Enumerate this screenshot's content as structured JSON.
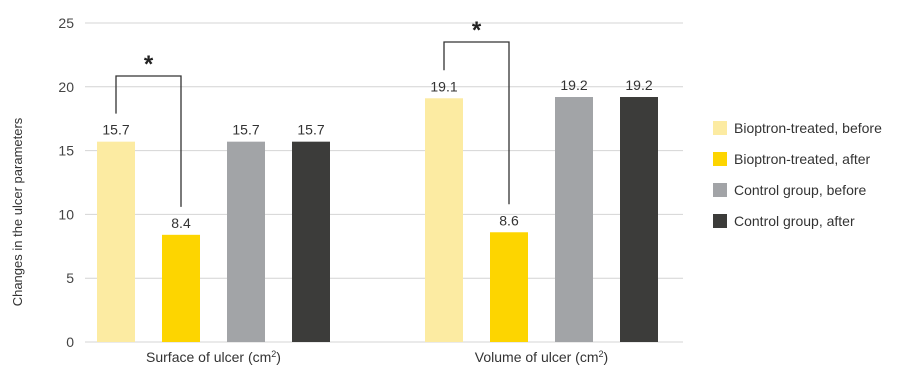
{
  "chart_data": {
    "type": "bar",
    "ylabel": "Changes in the ulcer parameters",
    "ylim": [
      0,
      25
    ],
    "yticks": [
      0,
      5,
      10,
      15,
      20,
      25
    ],
    "grid": true,
    "legend_position": "right",
    "groups": [
      {
        "label": "Surface of ulcer (cm",
        "sup": "2",
        "label_end": ")"
      },
      {
        "label": "Volume of ulcer (cm",
        "sup": "2",
        "label_end": ")"
      }
    ],
    "series": [
      {
        "name": "Bioptron-treated, before",
        "color": "#FCEBA2",
        "values": [
          15.7,
          19.1
        ]
      },
      {
        "name": "Bioptron-treated, after",
        "color": "#FDD500",
        "values": [
          8.4,
          8.6
        ]
      },
      {
        "name": "Control group, before",
        "color": "#A2A4A7",
        "values": [
          15.7,
          19.2
        ]
      },
      {
        "name": "Control group, after",
        "color": "#3C3C3A",
        "values": [
          15.7,
          19.2
        ]
      }
    ],
    "significance": [
      {
        "group": 0,
        "from_series": 0,
        "to_series": 1,
        "marker": "*"
      },
      {
        "group": 1,
        "from_series": 0,
        "to_series": 1,
        "marker": "*"
      }
    ]
  }
}
